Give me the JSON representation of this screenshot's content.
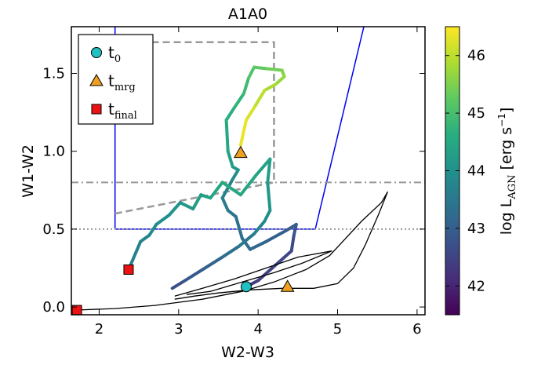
{
  "chart_data": {
    "type": "line",
    "title": "A1A0",
    "xlabel": "W2-W3",
    "ylabel": "W1-W2",
    "xlim": [
      1.65,
      6.1
    ],
    "ylim": [
      -0.05,
      1.8
    ],
    "xticks": [
      "2",
      "3",
      "4",
      "5",
      "6"
    ],
    "yticks": [
      "0.0",
      "0.5",
      "1.0",
      "1.5"
    ],
    "grid": false,
    "legend_placement": "top-left",
    "colorbar": {
      "label": "log L",
      "label_sub": "AGN",
      "label_unit": "[erg s",
      "label_sup": "−1",
      "label_close": "]",
      "range": [
        41.5,
        46.5
      ],
      "ticks": [
        "42",
        "43",
        "44",
        "45",
        "46"
      ],
      "colormap": "viridis"
    },
    "legend": [
      {
        "marker": "circle",
        "color": "#20c0c0",
        "text": "t",
        "sub": "0"
      },
      {
        "marker": "triangle",
        "color": "#f0a020",
        "text": "t",
        "sub": "mrg"
      },
      {
        "marker": "square",
        "color": "#ee1111",
        "text": "t",
        "sub": "final"
      }
    ],
    "markers": [
      {
        "name": "t0",
        "shape": "circle",
        "x": 3.85,
        "y": 0.13,
        "color": "#20c0c0"
      },
      {
        "name": "tmrg",
        "shape": "triangle",
        "x": 3.78,
        "y": 0.99,
        "color": "#f0a020"
      },
      {
        "name": "tmrg",
        "shape": "triangle",
        "x": 4.37,
        "y": 0.13,
        "color": "#f0a020"
      },
      {
        "name": "tfinal",
        "shape": "square",
        "x": 2.37,
        "y": 0.24,
        "color": "#ee1111"
      },
      {
        "name": "tfinal",
        "shape": "square",
        "x": 1.72,
        "y": -0.02,
        "color": "#ee1111"
      }
    ],
    "reference_lines": [
      {
        "style": "blue-wedge",
        "color": "#0000ee",
        "points": [
          [
            2.2,
            1.8
          ],
          [
            2.2,
            0.5
          ],
          [
            4.72,
            0.5
          ],
          [
            5.33,
            1.8
          ]
        ]
      },
      {
        "style": "dashed-box",
        "color": "#999999",
        "points": [
          [
            2.2,
            0.6
          ],
          [
            4.2,
            0.8
          ],
          [
            4.2,
            1.7
          ],
          [
            2.2,
            1.7
          ]
        ]
      },
      {
        "style": "dashdot",
        "color": "#999999",
        "y": 0.8
      },
      {
        "style": "dotted",
        "color": "#999999",
        "y": 0.5
      }
    ],
    "series": [
      {
        "style": "colored-track",
        "points": [
          [
            3.85,
            0.13,
            42.3
          ],
          [
            4.0,
            0.17,
            42.4
          ],
          [
            4.2,
            0.26,
            42.5
          ],
          [
            4.42,
            0.36,
            42.6
          ],
          [
            4.45,
            0.46,
            42.7
          ],
          [
            4.48,
            0.53,
            42.9
          ],
          [
            4.35,
            0.49,
            43.0
          ],
          [
            4.1,
            0.42,
            43.1
          ],
          [
            3.9,
            0.37,
            43.2
          ],
          [
            3.8,
            0.44,
            43.3
          ],
          [
            3.72,
            0.58,
            43.4
          ],
          [
            3.62,
            0.62,
            43.5
          ],
          [
            3.55,
            0.7,
            43.6
          ],
          [
            3.68,
            0.82,
            43.8
          ],
          [
            3.75,
            0.88,
            44.0
          ],
          [
            3.68,
            0.9,
            44.2
          ],
          [
            3.62,
            1.0,
            44.4
          ],
          [
            3.6,
            1.2,
            44.6
          ],
          [
            3.7,
            1.28,
            44.7
          ],
          [
            3.82,
            1.37,
            44.8
          ],
          [
            3.88,
            1.47,
            45.0
          ],
          [
            3.95,
            1.54,
            45.2
          ],
          [
            4.12,
            1.53,
            45.3
          ],
          [
            4.3,
            1.52,
            45.5
          ],
          [
            4.33,
            1.48,
            45.6
          ],
          [
            4.22,
            1.43,
            45.8
          ],
          [
            4.08,
            1.39,
            45.9
          ],
          [
            3.95,
            1.28,
            46.1
          ],
          [
            3.85,
            1.2,
            46.3
          ],
          [
            3.78,
            1.04,
            46.4
          ]
        ]
      },
      {
        "style": "colored-track",
        "points": [
          [
            2.92,
            0.12,
            42.6
          ],
          [
            3.08,
            0.17,
            42.8
          ],
          [
            3.3,
            0.24,
            43.0
          ],
          [
            3.55,
            0.32,
            43.2
          ],
          [
            3.76,
            0.39,
            43.4
          ],
          [
            3.95,
            0.47,
            43.6
          ],
          [
            4.08,
            0.55,
            43.8
          ],
          [
            4.15,
            0.62,
            44.0
          ],
          [
            4.12,
            0.8,
            44.2
          ],
          [
            4.15,
            0.95,
            44.3
          ],
          [
            3.98,
            0.85,
            44.4
          ],
          [
            3.78,
            0.72,
            44.5
          ],
          [
            3.55,
            0.8,
            44.5
          ],
          [
            3.4,
            0.7,
            44.4
          ],
          [
            3.28,
            0.72,
            44.3
          ],
          [
            3.18,
            0.63,
            44.2
          ],
          [
            3.02,
            0.67,
            44.1
          ],
          [
            2.88,
            0.59,
            44.0
          ],
          [
            2.72,
            0.53,
            43.9
          ],
          [
            2.63,
            0.46,
            43.8
          ],
          [
            2.52,
            0.42,
            43.7
          ],
          [
            2.37,
            0.24,
            43.6
          ]
        ]
      },
      {
        "style": "black-line",
        "color": "#000000",
        "points": [
          [
            1.72,
            -0.02
          ],
          [
            2.2,
            -0.01
          ],
          [
            2.7,
            0.01
          ],
          [
            3.3,
            0.05
          ],
          [
            3.8,
            0.1
          ],
          [
            4.2,
            0.16
          ],
          [
            4.6,
            0.24
          ],
          [
            4.9,
            0.33
          ],
          [
            5.1,
            0.44
          ],
          [
            5.3,
            0.55
          ],
          [
            5.55,
            0.67
          ],
          [
            5.63,
            0.74
          ],
          [
            5.52,
            0.6
          ],
          [
            5.35,
            0.4
          ],
          [
            5.2,
            0.25
          ],
          [
            5.0,
            0.15
          ],
          [
            4.7,
            0.12
          ],
          [
            4.3,
            0.12
          ],
          [
            3.9,
            0.11
          ],
          [
            3.5,
            0.09
          ],
          [
            3.2,
            0.07
          ],
          [
            2.95,
            0.05
          ]
        ]
      },
      {
        "style": "black-line",
        "color": "#000000",
        "points": [
          [
            2.95,
            0.07
          ],
          [
            3.3,
            0.12
          ],
          [
            3.7,
            0.18
          ],
          [
            4.1,
            0.25
          ],
          [
            4.5,
            0.32
          ],
          [
            4.93,
            0.36
          ],
          [
            4.55,
            0.28
          ],
          [
            4.2,
            0.22
          ],
          [
            3.8,
            0.16
          ],
          [
            3.4,
            0.1
          ],
          [
            3.1,
            0.08
          ]
        ]
      }
    ]
  }
}
